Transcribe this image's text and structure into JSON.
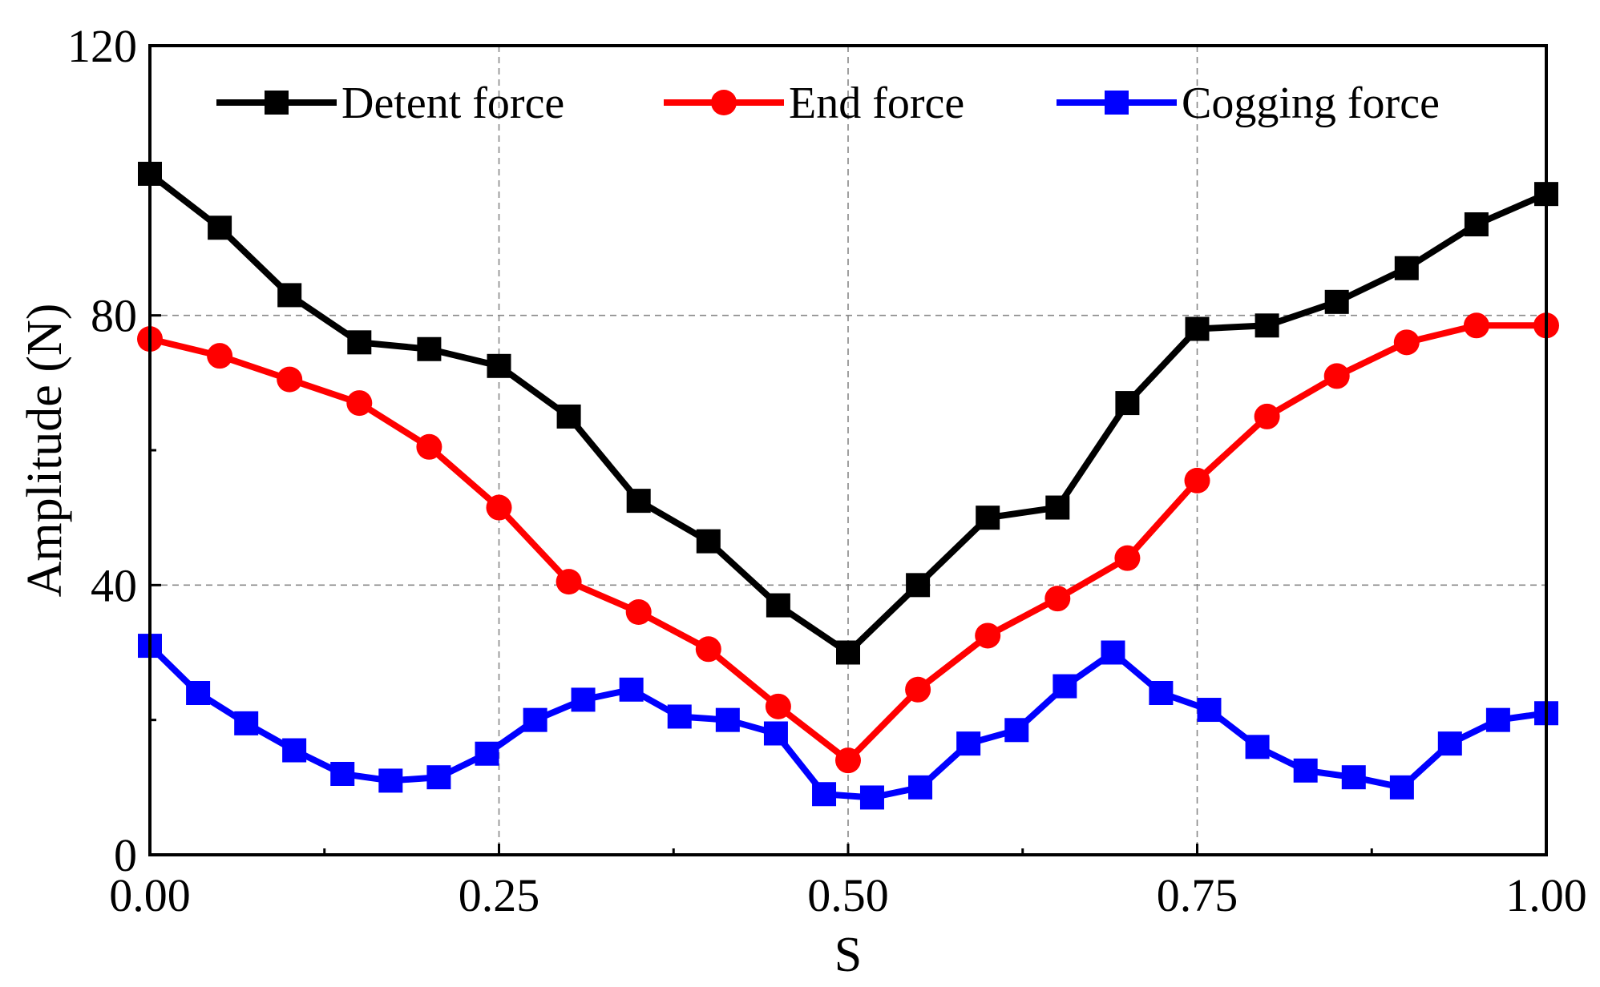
{
  "chart_data": {
    "type": "line",
    "title": "",
    "xlabel": "S",
    "ylabel": "Amplitude (N)",
    "xlim": [
      0,
      1
    ],
    "ylim": [
      0,
      120
    ],
    "xticks": [
      0,
      0.25,
      0.5,
      0.75,
      1.0
    ],
    "xtick_labels": [
      "0.00",
      "0.25",
      "0.50",
      "0.75",
      "1.00"
    ],
    "yticks": [
      0,
      40,
      80,
      120
    ],
    "ytick_labels": [
      "0",
      "40",
      "80",
      "120"
    ],
    "grid": true,
    "legend_position": "top",
    "series": [
      {
        "name": "Detent force",
        "color": "#000000",
        "marker": "square",
        "x": [
          0,
          0.05,
          0.1,
          0.15,
          0.2,
          0.25,
          0.3,
          0.35,
          0.4,
          0.45,
          0.5,
          0.55,
          0.6,
          0.65,
          0.7,
          0.75,
          0.8,
          0.85,
          0.9,
          0.95,
          1.0
        ],
        "y": [
          101,
          93,
          83,
          76,
          75,
          72.5,
          65,
          52.5,
          46.5,
          37,
          30,
          40,
          50,
          51.5,
          67,
          78,
          78.5,
          82,
          87,
          93.5,
          98
        ]
      },
      {
        "name": "End force",
        "color": "#ff0000",
        "marker": "circle",
        "x": [
          0,
          0.05,
          0.1,
          0.15,
          0.2,
          0.25,
          0.3,
          0.35,
          0.4,
          0.45,
          0.5,
          0.55,
          0.6,
          0.65,
          0.7,
          0.75,
          0.8,
          0.85,
          0.9,
          0.95,
          1.0
        ],
        "y": [
          76.5,
          74,
          70.5,
          67,
          60.5,
          51.5,
          40.5,
          36,
          30.5,
          22,
          14,
          24.5,
          32.5,
          38,
          44,
          55.5,
          65,
          71,
          76,
          78.5,
          78.5
        ]
      },
      {
        "name": "Cogging force",
        "color": "#0000ff",
        "marker": "square",
        "x": [
          0,
          0.0345,
          0.069,
          0.1034,
          0.1379,
          0.1724,
          0.2069,
          0.2414,
          0.2759,
          0.3103,
          0.3448,
          0.3793,
          0.4138,
          0.4483,
          0.4828,
          0.5172,
          0.5517,
          0.5862,
          0.6207,
          0.6552,
          0.6897,
          0.7241,
          0.7586,
          0.7931,
          0.8276,
          0.8621,
          0.8966,
          0.931,
          0.9655,
          1.0
        ],
        "y": [
          31,
          24,
          19.5,
          15.5,
          12,
          11,
          11.5,
          15,
          20,
          23,
          24.5,
          20.5,
          20,
          18,
          9,
          8.5,
          10,
          16.5,
          18.5,
          25,
          30,
          24,
          21.5,
          16,
          12.5,
          11.5,
          10,
          16.5,
          20,
          21
        ]
      }
    ]
  }
}
